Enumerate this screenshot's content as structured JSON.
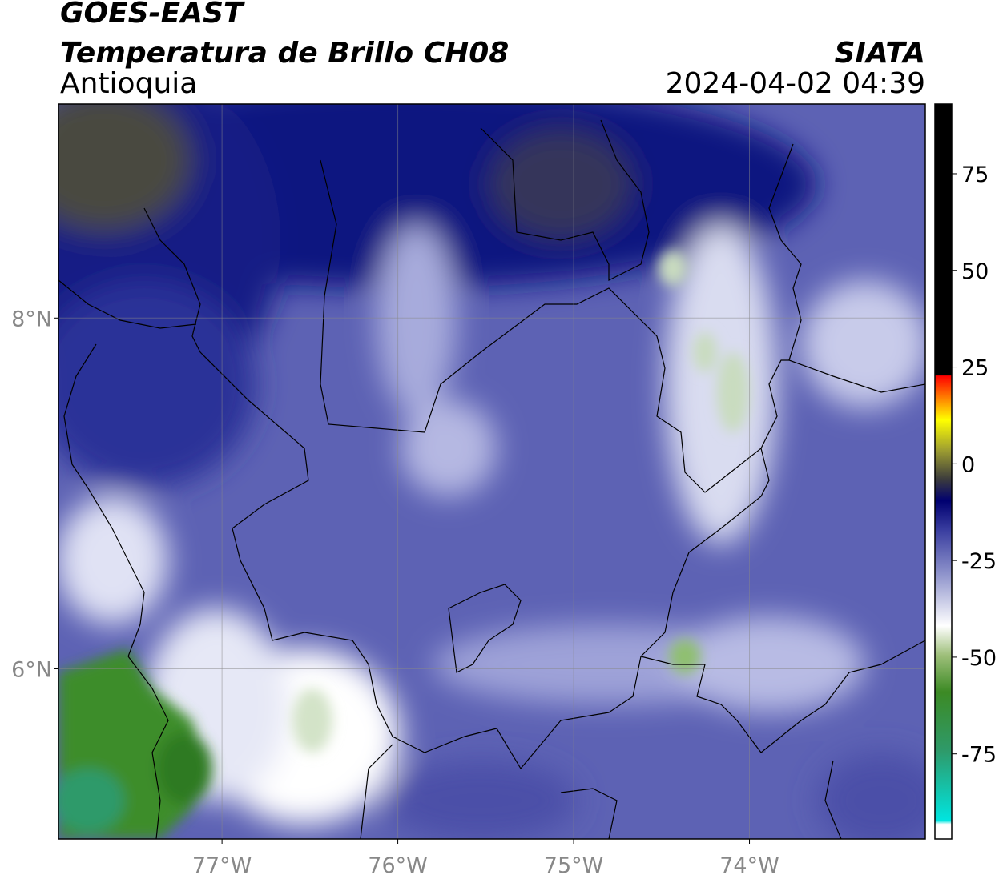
{
  "header": {
    "title": "GOES-EAST",
    "subtitle": "Temperatura de Brillo CH08",
    "region": "Antioquia",
    "source": "SIATA",
    "datetime": "2024-04-02 04:39"
  },
  "map": {
    "xlim": [
      -77.93,
      -73.0
    ],
    "ylim": [
      5.03,
      9.22
    ],
    "xticks": [
      {
        "value": -77,
        "label": "77°W"
      },
      {
        "value": -76,
        "label": "76°W"
      },
      {
        "value": -75,
        "label": "75°W"
      },
      {
        "value": -74,
        "label": "74°W"
      }
    ],
    "yticks": [
      {
        "value": 8,
        "label": "8°N"
      },
      {
        "value": 6,
        "label": "6°N"
      }
    ],
    "grid": true
  },
  "colorbar": {
    "ylim": [
      -97,
      93
    ],
    "yticks": [
      75,
      50,
      25,
      0,
      -25,
      -50,
      -75
    ]
  }
}
